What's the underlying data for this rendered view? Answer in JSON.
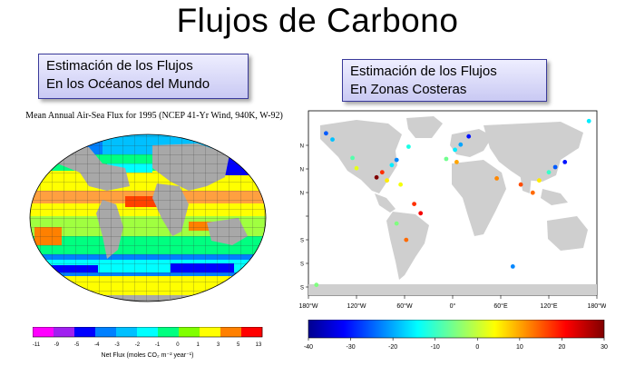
{
  "title": "Flujos de Carbono",
  "left_panel": {
    "box_line1": "Estimación de los Flujos",
    "box_line2": "En los Océanos del Mundo",
    "map_title": "Mean Annual Air-Sea Flux for 1995 (NCEP 41-Yr Wind, 940K, W-92)",
    "colorbar_ticks": [
      "-11",
      "-9",
      "-5",
      "-4",
      "-3",
      "-2",
      "-1",
      "0",
      "1",
      "3",
      "5",
      "13"
    ],
    "colorbar_label": "Net Flux (moles CO₂ m⁻² year⁻¹)",
    "colors": [
      "#ff00ff",
      "#a020f0",
      "#0000ff",
      "#0080ff",
      "#00c0ff",
      "#00ffff",
      "#00ff80",
      "#80ff00",
      "#ffff00",
      "#ff8000",
      "#ff0000"
    ]
  },
  "right_panel": {
    "box_line1": "Estimación de los Flujos",
    "box_line2": "En Zonas Costeras",
    "lon_ticks": [
      "180°W",
      "120°W",
      "60°W",
      "0°",
      "60°E",
      "120°E",
      "180°W"
    ],
    "lat_ticks": [
      "N",
      "N",
      "N",
      "",
      "S",
      "S",
      "S"
    ],
    "colorbar_ticks": [
      "-40",
      "-30",
      "-20",
      "-10",
      "0",
      "10",
      "20",
      "30"
    ],
    "colorbar_range": [
      -40,
      30
    ],
    "coastal_sites": [
      {
        "lon": -158,
        "lat": 68,
        "value": -25
      },
      {
        "lon": -150,
        "lat": 62,
        "value": -18
      },
      {
        "lon": -125,
        "lat": 44,
        "value": -8
      },
      {
        "lon": -120,
        "lat": 34,
        "value": 2
      },
      {
        "lon": -95,
        "lat": 25,
        "value": 30
      },
      {
        "lon": -88,
        "lat": 30,
        "value": 18
      },
      {
        "lon": -76,
        "lat": 37,
        "value": -15
      },
      {
        "lon": -70,
        "lat": 42,
        "value": -22
      },
      {
        "lon": -82,
        "lat": 22,
        "value": 5
      },
      {
        "lon": -65,
        "lat": 18,
        "value": 3
      },
      {
        "lon": -55,
        "lat": 55,
        "value": -12
      },
      {
        "lon": -48,
        "lat": -1,
        "value": 18
      },
      {
        "lon": -40,
        "lat": -10,
        "value": 22
      },
      {
        "lon": -58,
        "lat": -36,
        "value": 14
      },
      {
        "lon": -70,
        "lat": -20,
        "value": -5
      },
      {
        "lon": 10,
        "lat": 57,
        "value": -20
      },
      {
        "lon": 3,
        "lat": 52,
        "value": -15
      },
      {
        "lon": -8,
        "lat": 43,
        "value": -6
      },
      {
        "lon": 5,
        "lat": 40,
        "value": 10
      },
      {
        "lon": 20,
        "lat": 65,
        "value": -30
      },
      {
        "lon": 55,
        "lat": 24,
        "value": 12
      },
      {
        "lon": 85,
        "lat": 18,
        "value": 16
      },
      {
        "lon": 108,
        "lat": 22,
        "value": 5
      },
      {
        "lon": 120,
        "lat": 30,
        "value": -10
      },
      {
        "lon": 128,
        "lat": 35,
        "value": -25
      },
      {
        "lon": 140,
        "lat": 40,
        "value": -30
      },
      {
        "lon": 100,
        "lat": 10,
        "value": 14
      },
      {
        "lon": 75,
        "lat": -62,
        "value": -22
      },
      {
        "lon": -170,
        "lat": -80,
        "value": -5
      },
      {
        "lon": 170,
        "lat": 80,
        "value": -15
      }
    ]
  }
}
